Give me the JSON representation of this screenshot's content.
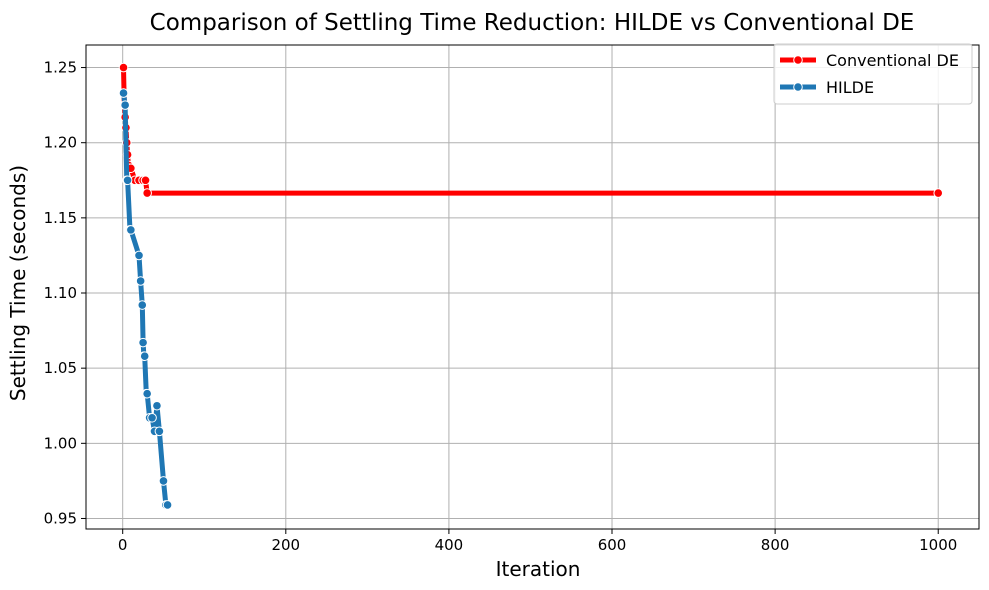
{
  "chart_data": {
    "type": "line",
    "title": "Comparison of Settling Time Reduction: HILDE  vs Conventional DE",
    "xlabel": "Iteration",
    "ylabel": "Settling Time (seconds)",
    "xlim": [
      -45,
      1050
    ],
    "ylim": [
      0.943,
      1.265
    ],
    "xticks": [
      0,
      200,
      400,
      600,
      800,
      1000
    ],
    "yticks": [
      0.95,
      1.0,
      1.05,
      1.1,
      1.15,
      1.2,
      1.25
    ],
    "xtick_labels": [
      "0",
      "200",
      "400",
      "600",
      "800",
      "1000"
    ],
    "ytick_labels": [
      "0.95",
      "1.00",
      "1.05",
      "1.10",
      "1.15",
      "1.20",
      "1.25"
    ],
    "grid": true,
    "legend_position": "top-right",
    "series": [
      {
        "name": "Conventional DE",
        "color": "#ff0000",
        "x": [
          1,
          2,
          3,
          4,
          5,
          6,
          7,
          8,
          9,
          10,
          15,
          20,
          25,
          28,
          30,
          1000
        ],
        "y": [
          1.25,
          1.225,
          1.217,
          1.21,
          1.2,
          1.192,
          1.185,
          1.183,
          1.183,
          1.183,
          1.175,
          1.175,
          1.175,
          1.175,
          1.1665,
          1.1665
        ]
      },
      {
        "name": "HILDE",
        "color": "#1f77b4",
        "x": [
          1,
          3,
          5,
          6,
          9,
          10,
          20,
          22,
          24,
          25,
          26,
          27,
          29,
          30,
          33,
          36,
          39,
          42,
          45,
          50,
          53,
          55
        ],
        "y": [
          1.233,
          1.225,
          1.175,
          1.175,
          1.142,
          1.142,
          1.125,
          1.108,
          1.092,
          1.067,
          1.058,
          1.058,
          1.033,
          1.033,
          1.017,
          1.017,
          1.008,
          1.025,
          1.008,
          0.975,
          0.959,
          0.959
        ]
      }
    ]
  }
}
